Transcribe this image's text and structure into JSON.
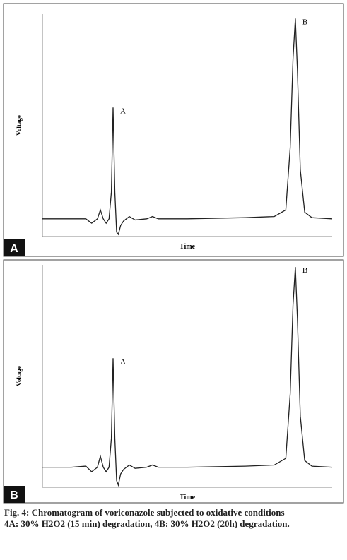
{
  "chart_data": [
    {
      "type": "line",
      "panel_label": "A",
      "xlabel": "Time",
      "ylabel": "Voltage",
      "color": "#222222",
      "xlim": [
        0,
        10
      ],
      "ylim": [
        0,
        100
      ],
      "x": [
        0,
        1.0,
        1.5,
        1.7,
        1.9,
        2.0,
        2.1,
        2.2,
        2.3,
        2.38,
        2.44,
        2.5,
        2.56,
        2.62,
        2.7,
        2.8,
        2.9,
        3.0,
        3.2,
        3.6,
        3.8,
        4.0,
        5.0,
        7.0,
        8.0,
        8.4,
        8.55,
        8.65,
        8.73,
        8.8,
        8.9,
        9.05,
        9.3,
        10
      ],
      "values": [
        8,
        8,
        8,
        6,
        8,
        12,
        8,
        6,
        8,
        20,
        58,
        20,
        2,
        1,
        5,
        7,
        8,
        9,
        7.5,
        8,
        9,
        8,
        8,
        8.5,
        9,
        12,
        40,
        80,
        98,
        75,
        30,
        11,
        8.5,
        8
      ],
      "annotations": [
        {
          "text": "A",
          "x": 2.44
        },
        {
          "text": "B",
          "x": 8.73
        }
      ]
    },
    {
      "type": "line",
      "panel_label": "B",
      "xlabel": "Time",
      "ylabel": "Voltage",
      "color": "#222222",
      "xlim": [
        0,
        10
      ],
      "ylim": [
        0,
        100
      ],
      "x": [
        0,
        1.0,
        1.5,
        1.7,
        1.9,
        2.0,
        2.1,
        2.2,
        2.3,
        2.38,
        2.44,
        2.5,
        2.56,
        2.62,
        2.7,
        2.8,
        2.9,
        3.0,
        3.2,
        3.6,
        3.8,
        4.0,
        5.0,
        7.0,
        8.0,
        8.4,
        8.55,
        8.65,
        8.73,
        8.8,
        8.9,
        9.05,
        9.3,
        10
      ],
      "values": [
        9,
        9,
        9.5,
        7,
        9,
        14,
        9,
        7,
        9,
        22,
        58,
        22,
        3,
        1,
        6,
        8,
        9,
        10,
        8.5,
        9,
        10,
        9,
        9,
        9.5,
        10,
        13,
        42,
        82,
        99,
        76,
        32,
        12,
        9.5,
        9
      ],
      "annotations": [
        {
          "text": "A",
          "x": 2.44
        },
        {
          "text": "B",
          "x": 8.73
        }
      ]
    }
  ],
  "caption": {
    "title": "Fig. 4: Chromatogram of voriconazole subjected to oxidative conditions",
    "text": "4A: 30% H2O2 (15 min) degradation, 4B: 30% H2O2 (20h) degradation."
  }
}
